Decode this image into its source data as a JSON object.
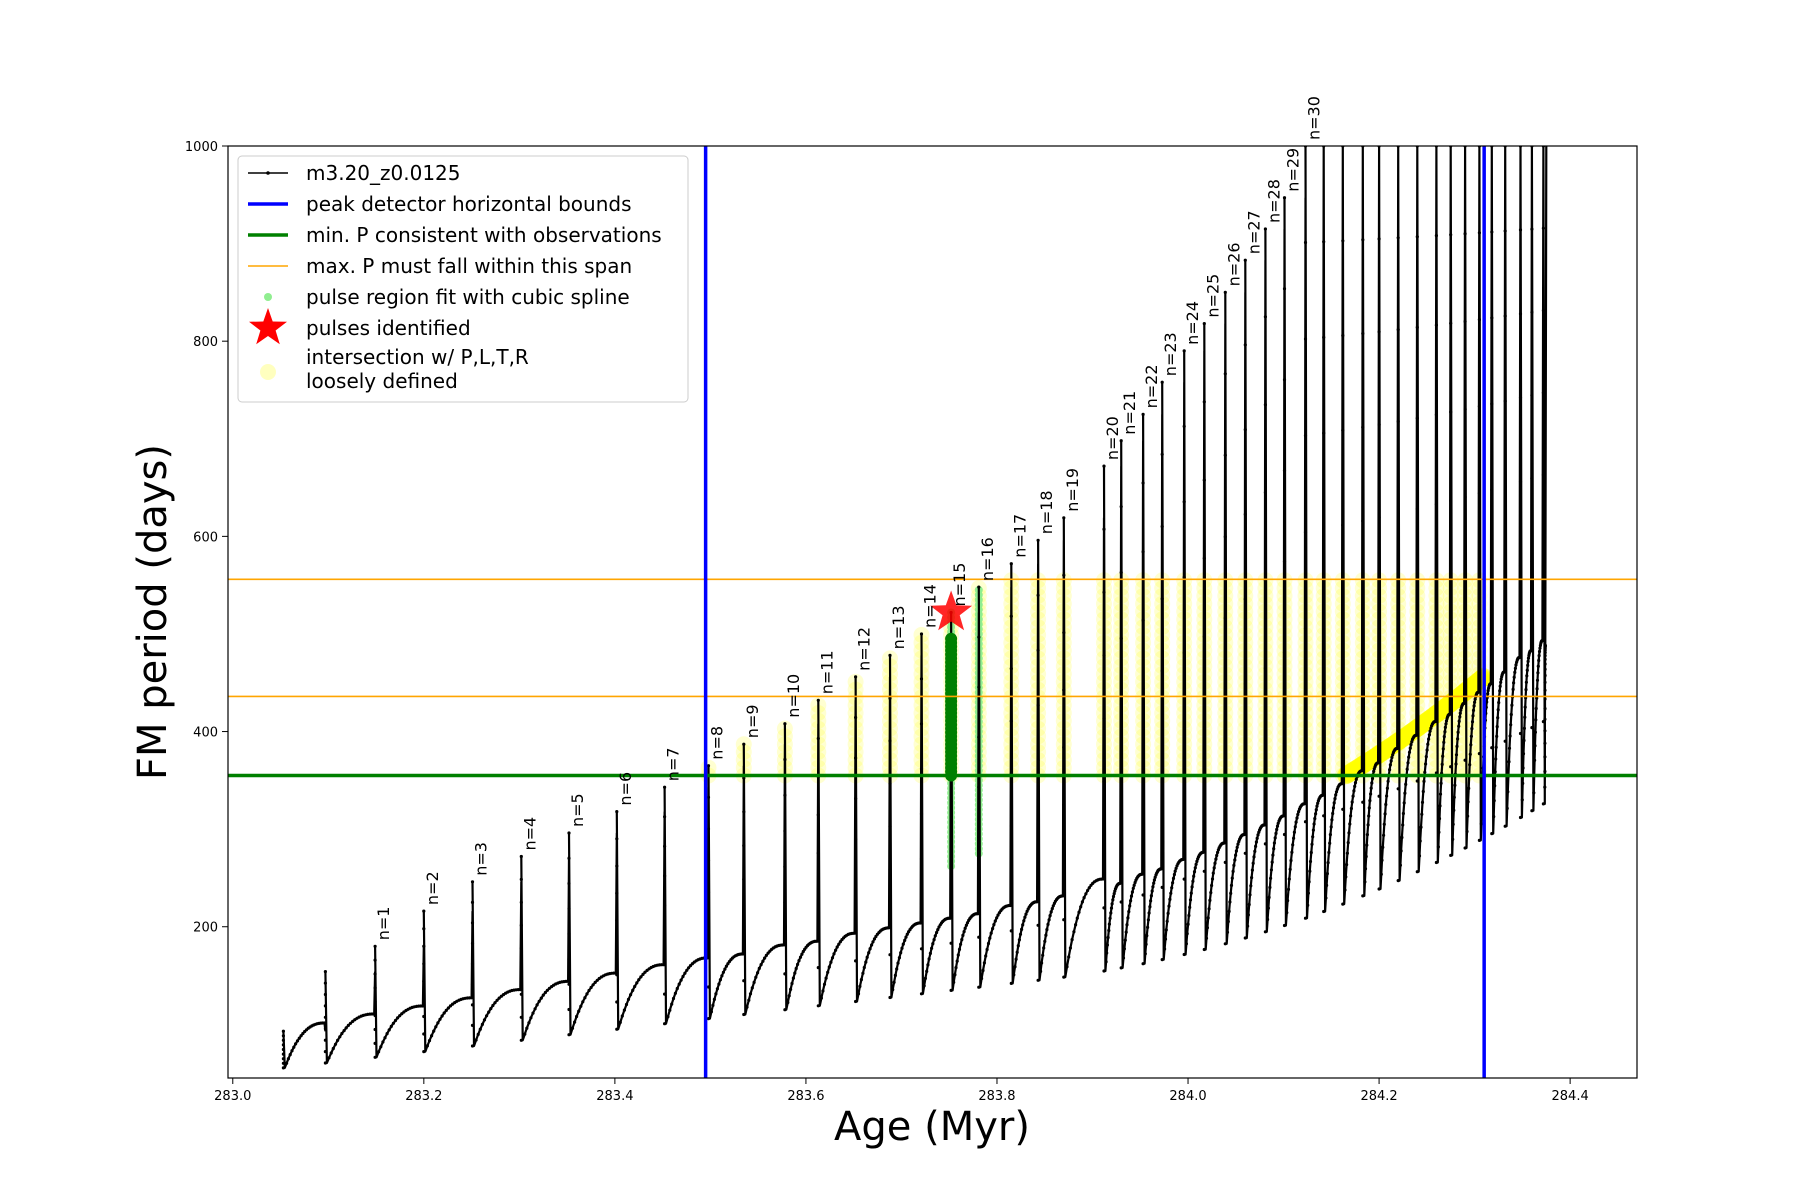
{
  "chart_data": {
    "type": "line",
    "xlabel": "Age (Myr)",
    "ylabel": "FM period (days)",
    "xlim": [
      282.995,
      284.47
    ],
    "ylim": [
      45,
      1000
    ],
    "x_ticks": [
      283.0,
      283.2,
      283.4,
      283.6,
      283.8,
      284.0,
      284.2,
      284.4
    ],
    "x_tick_labels": [
      "283.0",
      "283.2",
      "283.4",
      "283.6",
      "283.8",
      "284.0",
      "284.2",
      "284.4"
    ],
    "y_ticks": [
      200,
      400,
      600,
      800,
      1000
    ],
    "y_tick_labels": [
      "200",
      "400",
      "600",
      "800",
      "1000"
    ],
    "grid": false,
    "legend_position": "upper-left",
    "series": [
      {
        "name": "m3.20_z0.0125",
        "color": "#000000",
        "style": "line-with-dots"
      },
      {
        "name": "peak detector horizontal bounds",
        "color": "#0000ff",
        "style": "vertical-lines",
        "x": [
          283.495,
          284.31
        ]
      },
      {
        "name": "min. P consistent with observations",
        "color": "#008000",
        "style": "horizontal-line",
        "y": 355
      },
      {
        "name": "max. P must fall within this span",
        "color": "#ffa500",
        "style": "horizontal-lines",
        "y": [
          436,
          556
        ]
      },
      {
        "name": "pulse region fit with cubic spline",
        "color": "#90ee90",
        "style": "points"
      },
      {
        "name": "pulses identified",
        "color": "#ff0000",
        "style": "star",
        "points": [
          {
            "x": 283.752,
            "y": 522
          }
        ]
      },
      {
        "name": "intersection w/ P,L,T,R\nloosely defined",
        "color": "#ffff00",
        "style": "points"
      }
    ],
    "legend_labels": [
      "m3.20_z0.0125",
      "peak detector horizontal bounds",
      "min. P consistent with observations",
      "max. P must fall within this span",
      "pulse region fit with cubic spline",
      "pulses identified",
      "intersection w/ P,L,T,R",
      "loosely defined"
    ],
    "pulses": [
      {
        "n": 1,
        "label": "n=1",
        "age": 283.149,
        "peak": 180
      },
      {
        "n": 2,
        "label": "n=2",
        "age": 283.2,
        "peak": 216
      },
      {
        "n": 3,
        "label": "n=3",
        "age": 283.251,
        "peak": 246
      },
      {
        "n": 4,
        "label": "n=4",
        "age": 283.302,
        "peak": 272
      },
      {
        "n": 5,
        "label": "n=5",
        "age": 283.352,
        "peak": 296
      },
      {
        "n": 6,
        "label": "n=6",
        "age": 283.402,
        "peak": 318
      },
      {
        "n": 7,
        "label": "n=7",
        "age": 283.452,
        "peak": 343
      },
      {
        "n": 8,
        "label": "n=8",
        "age": 283.498,
        "peak": 365
      },
      {
        "n": 9,
        "label": "n=9",
        "age": 283.535,
        "peak": 387
      },
      {
        "n": 10,
        "label": "n=10",
        "age": 283.578,
        "peak": 408
      },
      {
        "n": 11,
        "label": "n=11",
        "age": 283.613,
        "peak": 432
      },
      {
        "n": 12,
        "label": "n=12",
        "age": 283.652,
        "peak": 456
      },
      {
        "n": 13,
        "label": "n=13",
        "age": 283.688,
        "peak": 478
      },
      {
        "n": 14,
        "label": "n=14",
        "age": 283.721,
        "peak": 500
      },
      {
        "n": 15,
        "label": "n=15",
        "age": 283.752,
        "peak": 522
      },
      {
        "n": 16,
        "label": "n=16",
        "age": 283.781,
        "peak": 548
      },
      {
        "n": 17,
        "label": "n=17",
        "age": 283.815,
        "peak": 572
      },
      {
        "n": 18,
        "label": "n=18",
        "age": 283.843,
        "peak": 596
      },
      {
        "n": 19,
        "label": "n=19",
        "age": 283.87,
        "peak": 619
      },
      {
        "n": 20,
        "label": "n=20",
        "age": 283.912,
        "peak": 672
      },
      {
        "n": 21,
        "label": "n=21",
        "age": 283.93,
        "peak": 698
      },
      {
        "n": 22,
        "label": "n=22",
        "age": 283.953,
        "peak": 725
      },
      {
        "n": 23,
        "label": "n=23",
        "age": 283.973,
        "peak": 758
      },
      {
        "n": 24,
        "label": "n=24",
        "age": 283.996,
        "peak": 790
      },
      {
        "n": 25,
        "label": "n=25",
        "age": 284.017,
        "peak": 818
      },
      {
        "n": 26,
        "label": "n=26",
        "age": 284.039,
        "peak": 850
      },
      {
        "n": 27,
        "label": "n=27",
        "age": 284.06,
        "peak": 883
      },
      {
        "n": 28,
        "label": "n=28",
        "age": 284.081,
        "peak": 915
      },
      {
        "n": 29,
        "label": "n=29",
        "age": 284.101,
        "peak": 947
      },
      {
        "n": 30,
        "label": "n=30",
        "age": 284.123,
        "peak": 1000
      }
    ],
    "late_pulse_ages": [
      284.142,
      284.162,
      284.183,
      284.2,
      284.22,
      284.24,
      284.26,
      284.275,
      284.29,
      284.305,
      284.318,
      284.332,
      284.348,
      284.36,
      284.372
    ],
    "cycle_start": {
      "age": 283.053,
      "trough": 55,
      "peak": 93
    },
    "min_period_line": 355,
    "max_period_span": [
      436,
      556
    ],
    "detector_bounds": [
      283.495,
      284.31
    ]
  }
}
